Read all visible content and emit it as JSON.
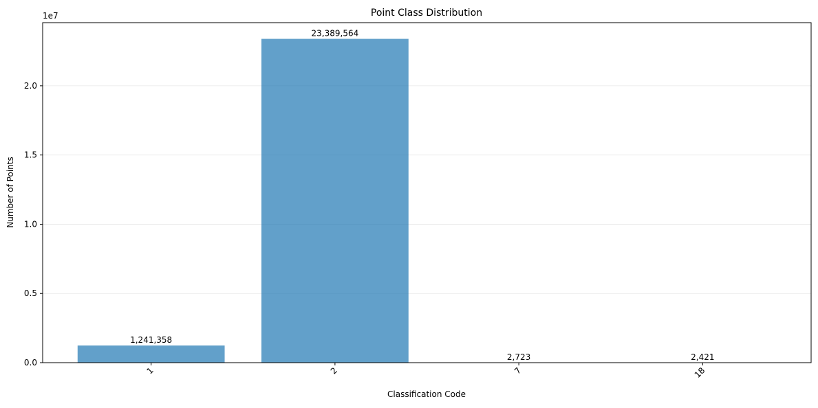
{
  "chart_data": {
    "type": "bar",
    "title": "Point Class Distribution",
    "xlabel": "Classification Code",
    "ylabel": "Number of Points",
    "y_offset_text": "1e7",
    "categories": [
      "1",
      "2",
      "7",
      "18"
    ],
    "values": [
      1241358,
      23389564,
      2723,
      2421
    ],
    "value_labels": [
      "1,241,358",
      "23,389,564",
      "2,723",
      "2,421"
    ],
    "ylim": [
      0,
      24559042
    ],
    "yticks": [
      0,
      5000000,
      10000000,
      15000000,
      20000000
    ],
    "ytick_labels": [
      "0.0",
      "0.5",
      "1.0",
      "1.5",
      "2.0"
    ],
    "xtick_rotation_deg": 45,
    "grid": "y",
    "legend": "none",
    "colors": {
      "bar": "#1f77b4",
      "bar_opacity": 0.7,
      "grid": "#b0b0b0"
    }
  }
}
